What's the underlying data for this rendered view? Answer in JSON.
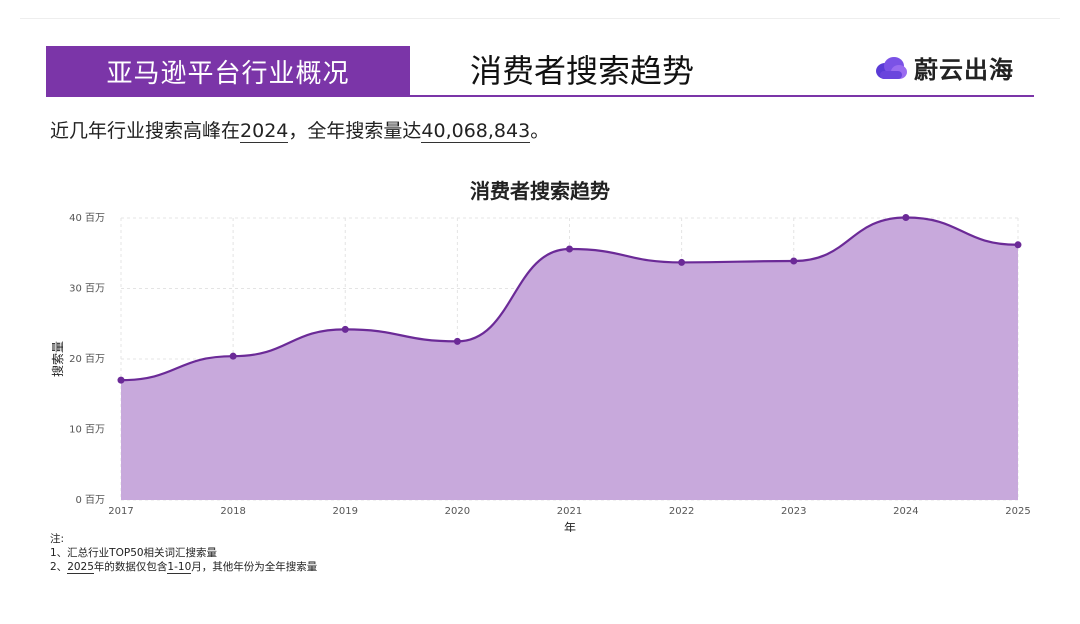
{
  "header": {
    "section_title": "亚马逊平台行业概况",
    "page_title": "消费者搜索趋势",
    "logo_text": "蔚云出海"
  },
  "summary": {
    "prefix": "近几年行业搜索高峰在",
    "peak_year": "2024",
    "middle": "，全年搜索量达",
    "peak_value": "40,068,843",
    "suffix": "。"
  },
  "chart_data": {
    "type": "area",
    "title": "消费者搜索趋势",
    "xlabel": "年",
    "ylabel": "搜索量",
    "x": [
      "2017",
      "2018",
      "2019",
      "2020",
      "2021",
      "2022",
      "2023",
      "2024",
      "2025"
    ],
    "y_ticks": [
      "0 百万",
      "10 百万",
      "20 百万",
      "30 百万",
      "40 百万"
    ],
    "series": [
      {
        "values": [
          17.0,
          20.4,
          24.2,
          22.5,
          35.6,
          33.7,
          33.9,
          40.07,
          36.2
        ]
      }
    ],
    "ylim": [
      0,
      40
    ],
    "grid": true,
    "colors": {
      "fill": "#c8a9dc",
      "line": "#6b2a97",
      "marker": "#6b2a97"
    }
  },
  "notes": {
    "heading": "注:",
    "line1": "1、汇总行业TOP50相关词汇搜索量",
    "line2_a": "2、",
    "line2_b": "2025",
    "line2_c": "年的数据仅包含",
    "line2_d": "1-10",
    "line2_e": "月，其他年份为全年搜索量"
  },
  "colors": {
    "accent": "#7b35a8"
  }
}
